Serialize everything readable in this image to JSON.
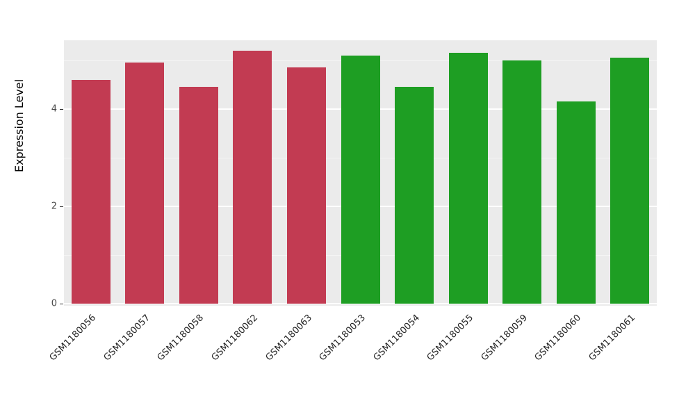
{
  "chart_data": {
    "type": "bar",
    "title": "",
    "xlabel": "",
    "ylabel": "Expression Level",
    "categories": [
      "GSM1180056",
      "GSM1180057",
      "GSM1180058",
      "GSM1180062",
      "GSM1180063",
      "GSM1180053",
      "GSM1180054",
      "GSM1180055",
      "GSM1180059",
      "GSM1180060",
      "GSM1180061"
    ],
    "values": [
      4.6,
      4.95,
      4.45,
      5.2,
      4.85,
      5.1,
      4.45,
      5.15,
      5.0,
      4.15,
      5.05
    ],
    "bar_colors": [
      "#C23B52",
      "#C23B52",
      "#C23B52",
      "#C23B52",
      "#C23B52",
      "#1E9E23",
      "#1E9E23",
      "#1E9E23",
      "#1E9E23",
      "#1E9E23",
      "#1E9E23"
    ],
    "group_colors": {
      "group1": "#C23B52",
      "group2": "#1E9E23"
    },
    "ylim": [
      0,
      5.45
    ],
    "yticks": [
      0,
      2,
      4
    ],
    "minor_yticks": [
      1,
      3,
      5
    ],
    "grid": "on",
    "legend_position": "none",
    "panel_background": "#EBEBEB"
  }
}
